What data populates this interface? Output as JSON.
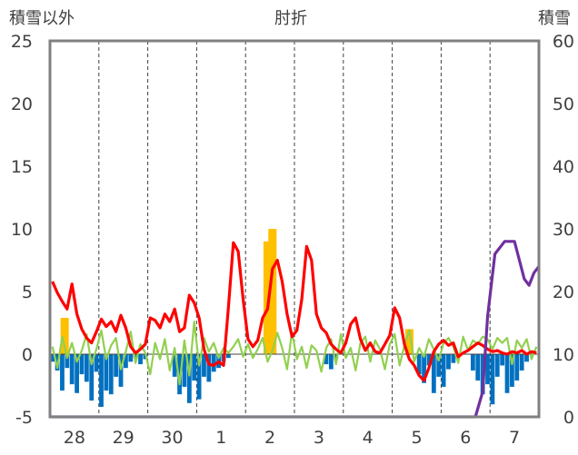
{
  "chart_data": {
    "type": "line",
    "title": "肘折",
    "left_axis_label": "積雪以外",
    "right_axis_label": "積雪",
    "x_categories": [
      "28",
      "29",
      "30",
      "1",
      "2",
      "3",
      "4",
      "5",
      "6",
      "7"
    ],
    "y_left": {
      "range": [
        -5,
        25
      ],
      "ticks": [
        "25",
        "20",
        "15",
        "10",
        "5",
        "0",
        "-5"
      ]
    },
    "y_right": {
      "range": [
        0,
        60
      ],
      "ticks": [
        "60",
        "50",
        "40",
        "30",
        "20",
        "10",
        "0"
      ]
    },
    "grid": {
      "vertical_dashed_at_day_boundaries": true,
      "horizontal": false
    },
    "colors": {
      "temperature": "#ff0000",
      "temp_anomaly": "#92d050",
      "precipitation": "#ffc000",
      "sunshine_deficit": "#0070c0",
      "snow_depth": "#7030a0",
      "frame": "#808080",
      "zero_line": "#404040"
    },
    "series": [
      {
        "key": "temperature",
        "axis": "left",
        "x": [
          -0.45,
          -0.35,
          -0.25,
          -0.15,
          -0.05,
          0.05,
          0.15,
          0.25,
          0.35,
          0.45,
          0.55,
          0.65,
          0.75,
          0.85,
          0.95,
          1.05,
          1.15,
          1.25,
          1.35,
          1.45,
          1.55,
          1.65,
          1.75,
          1.85,
          1.95,
          2.05,
          2.15,
          2.25,
          2.35,
          2.45,
          2.55,
          2.65,
          2.75,
          2.85,
          2.95,
          3.05,
          3.15,
          3.25,
          3.35,
          3.45,
          3.55,
          3.65,
          3.75,
          3.85,
          3.95,
          4.05,
          4.15,
          4.25,
          4.35,
          4.45,
          4.55,
          4.65,
          4.75,
          4.85,
          4.95,
          5.05,
          5.15,
          5.25,
          5.35,
          5.45,
          5.55,
          5.65,
          5.75,
          5.85,
          5.95,
          6.05,
          6.15,
          6.25,
          6.35,
          6.45,
          6.55,
          6.65,
          6.75,
          6.85,
          6.95,
          7.05,
          7.15,
          7.25,
          7.35,
          7.45,
          7.55,
          7.65,
          7.75,
          7.85,
          7.95,
          8.05,
          8.15,
          8.25,
          8.35,
          8.45,
          8.55,
          8.65,
          8.75,
          8.85,
          8.95,
          9.05,
          9.15,
          9.25,
          9.35,
          9.45
        ],
        "values": [
          5.8,
          4.9,
          4.2,
          3.6,
          5.6,
          3.2,
          2.0,
          1.3,
          0.9,
          1.8,
          2.8,
          2.2,
          2.6,
          1.8,
          3.1,
          2.1,
          0.6,
          0.1,
          0.4,
          0.8,
          2.9,
          2.7,
          2.1,
          3.2,
          2.6,
          3.6,
          1.8,
          2.1,
          4.7,
          4.1,
          2.9,
          0.4,
          -0.8,
          -0.9,
          -0.6,
          -0.9,
          3.8,
          8.9,
          8.2,
          4.4,
          1.2,
          0.6,
          1.1,
          2.9,
          3.6,
          6.8,
          7.5,
          5.8,
          3.2,
          1.4,
          1.9,
          4.4,
          8.6,
          7.5,
          3.2,
          2.1,
          1.7,
          0.8,
          0.4,
          0.1,
          0.9,
          2.4,
          2.9,
          1.2,
          0.3,
          0.9,
          0.2,
          0.1,
          0.8,
          1.5,
          3.7,
          2.9,
          0.8,
          -0.4,
          -0.9,
          -1.7,
          -2.1,
          -1.1,
          0.2,
          0.8,
          1.1,
          0.7,
          0.9,
          -0.2,
          0.1,
          0.3,
          0.6,
          0.9,
          0.7,
          0.4,
          0.2,
          0.3,
          0.1,
          0.0,
          0.2,
          0.1,
          0.3,
          0.0,
          0.2,
          0.1
        ]
      },
      {
        "key": "temp_anomaly",
        "axis": "left",
        "x": [
          -0.45,
          -0.35,
          -0.25,
          -0.15,
          -0.05,
          0.05,
          0.15,
          0.25,
          0.35,
          0.45,
          0.55,
          0.65,
          0.75,
          0.85,
          0.95,
          1.05,
          1.15,
          1.25,
          1.35,
          1.45,
          1.55,
          1.65,
          1.75,
          1.85,
          1.95,
          2.05,
          2.15,
          2.25,
          2.35,
          2.45,
          2.55,
          2.65,
          2.75,
          2.85,
          2.95,
          3.05,
          3.15,
          3.25,
          3.35,
          3.45,
          3.55,
          3.65,
          3.75,
          3.85,
          3.95,
          4.05,
          4.15,
          4.25,
          4.35,
          4.45,
          4.55,
          4.65,
          4.75,
          4.85,
          4.95,
          5.05,
          5.15,
          5.25,
          5.35,
          5.45,
          5.55,
          5.65,
          5.75,
          5.85,
          5.95,
          6.05,
          6.15,
          6.25,
          6.35,
          6.45,
          6.55,
          6.65,
          6.75,
          6.85,
          6.95,
          7.05,
          7.15,
          7.25,
          7.35,
          7.45,
          7.55,
          7.65,
          7.75,
          7.85,
          7.95,
          8.05,
          8.15,
          8.25,
          8.35,
          8.45,
          8.55,
          8.65,
          8.75,
          8.85,
          8.95,
          9.05,
          9.15,
          9.25,
          9.35,
          9.45
        ],
        "values": [
          0.6,
          -1.1,
          1.4,
          -0.3,
          0.9,
          -0.6,
          0.3,
          1.6,
          -0.8,
          0.4,
          1.9,
          -0.4,
          0.7,
          1.3,
          -1.2,
          0.2,
          1.8,
          -0.7,
          0.8,
          0.1,
          -1.6,
          0.9,
          -0.4,
          1.2,
          -1.3,
          0.5,
          -2.4,
          1.1,
          -1.7,
          2.6,
          -0.9,
          1.3,
          0.2,
          0.9,
          -0.3,
          0.5,
          0.1,
          0.6,
          1.2,
          -0.2,
          0.8,
          -0.3,
          0.4,
          1.3,
          -0.6,
          0.3,
          1.7,
          0.5,
          -1.2,
          1.8,
          -0.4,
          0.6,
          -1.1,
          0.7,
          0.3,
          -1.4,
          0.5,
          1.2,
          -0.8,
          1.6,
          -0.3,
          0.5,
          -1.3,
          0.9,
          1.4,
          -0.6,
          1.1,
          0.4,
          -1.2,
          0.8,
          1.6,
          -0.9,
          0.7,
          1.9,
          -0.6,
          0.5,
          -0.2,
          1.2,
          0.4,
          -0.5,
          0.9,
          1.3,
          0.6,
          -0.7,
          1.4,
          0.3,
          1.1,
          0.8,
          1.4,
          1.2,
          0.4,
          1.3,
          0.9,
          1.3,
          -0.8,
          1.1,
          0.5,
          1.2,
          -0.4,
          0.6
        ]
      },
      {
        "key": "precipitation",
        "axis": "left",
        "type": "bar",
        "x": [
          -0.2,
          3.95,
          4.05,
          6.85
        ],
        "values": [
          2.9,
          9.0,
          10.0,
          2.0
        ]
      },
      {
        "key": "sunshine_deficit",
        "axis": "left",
        "type": "bar",
        "x": [
          -0.45,
          -0.35,
          -0.25,
          -0.15,
          -0.05,
          0.05,
          0.15,
          0.25,
          0.35,
          0.45,
          0.55,
          0.65,
          0.75,
          0.85,
          0.95,
          1.05,
          1.15,
          1.25,
          1.35,
          1.45,
          2.05,
          2.15,
          2.25,
          2.35,
          2.45,
          2.55,
          2.65,
          2.75,
          2.85,
          2.95,
          3.05,
          3.15,
          5.15,
          5.25,
          5.35,
          7.05,
          7.15,
          7.25,
          7.35,
          7.45,
          7.55,
          7.65,
          7.75,
          8.15,
          8.25,
          8.35,
          8.45,
          8.55,
          8.65,
          8.75,
          8.85,
          8.95,
          9.05,
          9.15,
          9.25
        ],
        "values": [
          -0.6,
          -1.3,
          -2.9,
          -1.1,
          -2.4,
          -3.1,
          -1.6,
          -2.2,
          -3.7,
          -1.4,
          -4.2,
          -2.9,
          -3.2,
          -1.8,
          -2.6,
          -1.1,
          -0.6,
          -0.3,
          -0.8,
          -0.4,
          -1.8,
          -3.2,
          -2.6,
          -3.9,
          -2.1,
          -3.6,
          -1.8,
          -2.2,
          -1.4,
          -1.1,
          -0.6,
          -0.3,
          -0.8,
          -1.2,
          -0.4,
          -1.6,
          -2.3,
          -0.9,
          -3.1,
          -1.8,
          -2.6,
          -1.2,
          -0.7,
          -1.3,
          -2.1,
          -3.2,
          -2.4,
          -4.0,
          -1.8,
          -0.9,
          -3.1,
          -2.6,
          -2.1,
          -1.3,
          -0.6
        ]
      },
      {
        "key": "snow_depth",
        "axis": "right",
        "x": [
          -0.5,
          8.2,
          8.35,
          8.45,
          8.6,
          8.8,
          9.0,
          9.1,
          9.2,
          9.3,
          9.4,
          9.5
        ],
        "values": [
          0,
          0,
          4,
          16,
          26,
          28,
          28,
          25,
          22,
          21,
          23,
          24
        ]
      }
    ]
  }
}
